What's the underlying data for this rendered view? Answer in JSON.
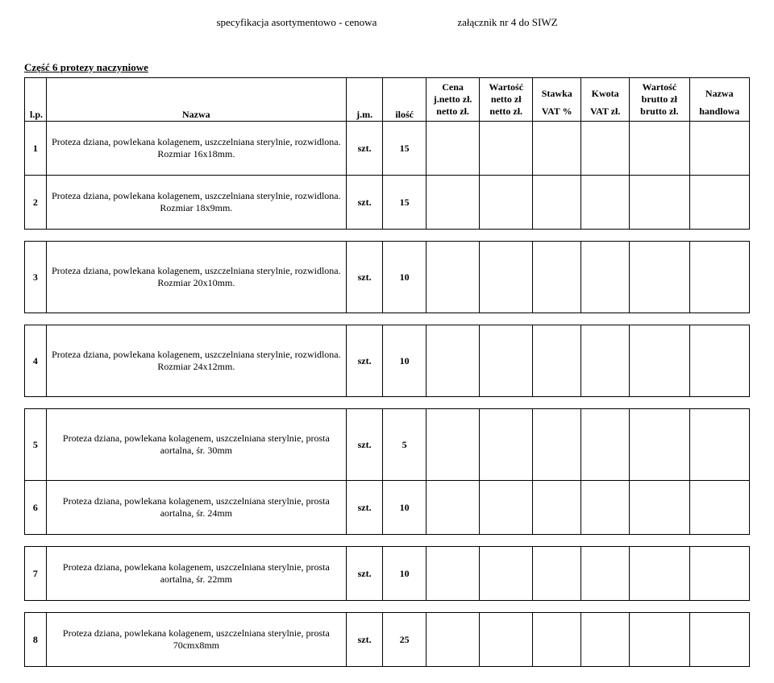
{
  "header": {
    "left": "specyfikacja asortymentowo - cenowa",
    "right": "załącznik nr 4 do SIWZ"
  },
  "section_title": "Część 6 protezy naczyniowe",
  "columns": {
    "lp": "l.p.",
    "name": "Nazwa",
    "jm": "j.m.",
    "qty": "ilość",
    "cena_top": "Cena",
    "cena_mid": "j.netto zł.",
    "cena_bot": "netto zł.",
    "wn_top": "Wartość",
    "wn_mid": "netto zł",
    "wn_bot": "netto zł.",
    "vat_top": "Stawka",
    "vat_bot": "VAT %",
    "kw_top": "Kwota",
    "kw_bot": "VAT zł.",
    "wb_top1": "Wartość",
    "wb_top2": "brutto zł",
    "wb_bot": "brutto zł.",
    "nh_top": "Nazwa",
    "nh_bot": "handlowa"
  },
  "rows": [
    {
      "lp": "1",
      "name": "Proteza dziana, powlekana kolagenem, uszczelniana sterylnie, rozwidlona. Rozmiar 16x18mm.",
      "jm": "szt.",
      "qty": "15",
      "height": "row-tall"
    },
    {
      "lp": "2",
      "name": "Proteza dziana, powlekana kolagenem, uszczelniana sterylnie, rozwidlona. Rozmiar 18x9mm.",
      "jm": "szt.",
      "qty": "15",
      "height": "row-tall"
    },
    {
      "lp": "3",
      "name": "Proteza dziana, powlekana kolagenem, uszczelniana sterylnie, rozwidlona. Rozmiar 20x10mm.",
      "jm": "szt.",
      "qty": "10",
      "height": "row-taller",
      "gap_before": true
    },
    {
      "lp": "4",
      "name": "Proteza dziana, powlekana kolagenem, uszczelniana sterylnie, rozwidlona. Rozmiar 24x12mm.",
      "jm": "szt.",
      "qty": "10",
      "height": "row-taller",
      "gap_before": true
    },
    {
      "lp": "5",
      "name": "Proteza dziana, powlekana kolagenem, uszczelniana sterylnie, prosta aortalna, śr. 30mm",
      "jm": "szt.",
      "qty": "5",
      "height": "row-taller",
      "gap_before": true
    },
    {
      "lp": "6",
      "name": "Proteza dziana, powlekana kolagenem, uszczelniana sterylnie, prosta aortalna, śr. 24mm",
      "jm": "szt.",
      "qty": "10",
      "height": "row-tall"
    },
    {
      "lp": "7",
      "name": "Proteza dziana, powlekana kolagenem, uszczelniana sterylnie, prosta aortalna, śr. 22mm",
      "jm": "szt.",
      "qty": "10",
      "height": "row-tall",
      "gap_before": true
    },
    {
      "lp": "8",
      "name": "Proteza dziana, powlekana kolagenem, uszczelniana sterylnie, prosta 70cmx8mm",
      "jm": "szt.",
      "qty": "25",
      "height": "row-tall",
      "gap_before": true
    }
  ]
}
